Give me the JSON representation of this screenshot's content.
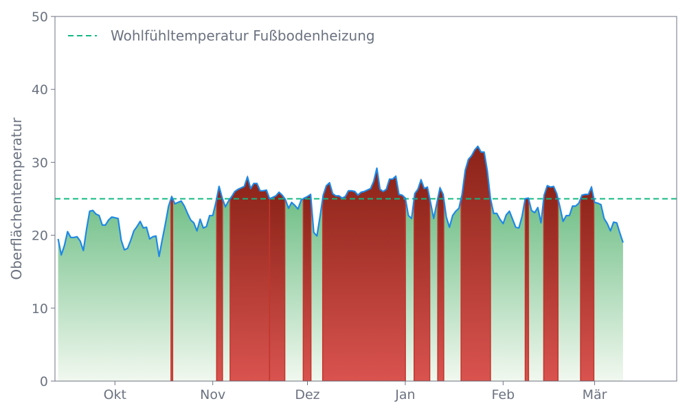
{
  "chart_data": {
    "type": "area",
    "title": "",
    "xlabel": "",
    "ylabel": "Oberflächentemperatur",
    "ylim": [
      0,
      50
    ],
    "yticks": [
      0,
      10,
      20,
      30,
      40,
      50
    ],
    "x_range": [
      "2023-09-12",
      "2024-03-27"
    ],
    "xticks": [
      {
        "date": "2023-10-01",
        "label": "Okt"
      },
      {
        "date": "2023-11-01",
        "label": "Nov"
      },
      {
        "date": "2023-12-01",
        "label": "Dez"
      },
      {
        "date": "2024-01-01",
        "label": "Jan"
      },
      {
        "date": "2024-02-01",
        "label": "Feb"
      },
      {
        "date": "2024-03-01",
        "label": "Mär"
      }
    ],
    "threshold": {
      "value": 25,
      "label": "Wohlfühltemperatur Fußbodenheizung"
    },
    "legend_position": "top-left",
    "grid": false,
    "colors": {
      "line": "#1e88e5",
      "threshold": "#10b981",
      "below_top": "#4caf6a",
      "below_bottom": "#f1f8ef",
      "above_top": "#8b2318",
      "above_bottom": "#d9534f",
      "axis": "#6b7280"
    },
    "series": [
      {
        "start_date": "2023-09-13",
        "step_days": 1,
        "values": [
          19.5,
          17.3,
          18.6,
          20.5,
          19.7,
          19.7,
          19.8,
          19.2,
          17.9,
          20.8,
          23.3,
          23.4,
          22.9,
          22.7,
          21.4,
          21.4,
          22.1,
          22.5,
          22.4,
          22.3,
          19.3,
          18.0,
          18.2,
          19.3,
          20.6,
          21.2,
          21.9,
          21.0,
          21.1,
          19.5,
          19.8,
          19.9,
          17.1,
          19.4,
          21.6,
          24.0,
          25.3,
          24.3,
          24.5,
          24.7,
          24.0,
          23.0,
          22.1,
          21.7,
          20.6,
          22.2,
          21.0,
          21.2,
          22.7,
          22.7,
          24.5,
          26.7,
          25.1,
          23.9,
          24.7,
          25.3,
          26.0,
          26.3,
          26.5,
          26.7,
          28.0,
          26.4,
          27.1,
          27.1,
          26.1,
          26.1,
          26.2,
          25.0,
          25.2,
          25.4,
          25.9,
          25.5,
          24.9,
          23.7,
          24.5,
          24.1,
          23.6,
          24.8,
          25.1,
          25.3,
          25.6,
          20.4,
          19.9,
          22.6,
          25.5,
          26.8,
          27.2,
          25.7,
          25.4,
          25.4,
          25.1,
          25.3,
          26.1,
          26.1,
          26.0,
          25.5,
          25.9,
          26.0,
          26.2,
          26.4,
          27.4,
          29.2,
          26.3,
          26.0,
          26.3,
          27.7,
          27.7,
          28.1,
          25.6,
          25.5,
          25.1,
          22.7,
          22.3,
          25.7,
          26.3,
          27.6,
          26.4,
          26.6,
          24.5,
          22.3,
          24.4,
          26.5,
          25.6,
          22.5,
          21.1,
          22.7,
          23.3,
          23.7,
          25.6,
          28.9,
          30.4,
          30.9,
          31.7,
          32.2,
          31.4,
          31.4,
          28.8,
          25.0,
          23.0,
          23.0,
          22.2,
          21.6,
          22.8,
          23.3,
          22.2,
          21.1,
          21.0,
          22.6,
          25.0,
          25.1,
          23.4,
          23.1,
          23.8,
          21.7,
          25.5,
          26.8,
          26.6,
          26.7,
          25.7,
          23.9,
          21.9,
          22.7,
          22.7,
          24.0,
          24.0,
          24.4,
          25.5,
          25.6,
          25.6,
          26.6,
          24.5,
          24.4,
          24.2,
          22.3,
          21.6,
          20.6,
          21.8,
          21.7,
          20.3,
          19.0
        ]
      }
    ]
  }
}
